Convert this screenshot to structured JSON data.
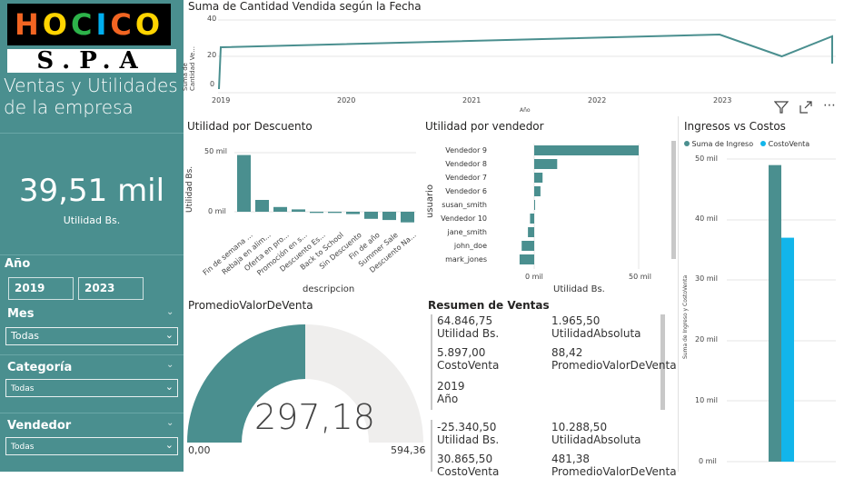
{
  "sidebar": {
    "logo_top": "HOCICO",
    "logo_bottom": "S.P.A",
    "title": "Ventas y Utilidades de la empresa",
    "kpi_value": "39,51 mil",
    "kpi_label": "Utilidad Bs.",
    "year_slicer": {
      "title": "Año",
      "from": "2019",
      "to": "2023"
    },
    "mes": {
      "title": "Mes",
      "value": "Todas"
    },
    "categoria": {
      "title": "Categoría",
      "value": "Todas"
    },
    "vendedor": {
      "title": "Vendedor",
      "value": "Todas"
    }
  },
  "line_chart": {
    "title": "Suma de Cantidad Vendida según la Fecha",
    "ylabel": "Suma de Cantidad Ve...",
    "xlabel": "Año",
    "y_ticks": [
      "40",
      "20",
      "0"
    ],
    "x_ticks": [
      "2019",
      "2020",
      "2021",
      "2022",
      "2023"
    ]
  },
  "toolbar": {
    "filter": "filter-icon",
    "focus": "expand-icon",
    "more": "more-icon"
  },
  "discount_chart": {
    "title": "Utilidad por Descuento",
    "ylabel": "Utilidad Bs.",
    "xlabel": "descripcion",
    "y_ticks": [
      "50 mil",
      "0 mil"
    ],
    "categories": [
      "Fin de semana ...",
      "Rebaja en alim...",
      "Oferta en pro...",
      "Promoción en s...",
      "Descuento Es...",
      "Back to School",
      "Sin Descuento",
      "Fin de año",
      "Summer Sale",
      "Descuento Na..."
    ]
  },
  "seller_chart": {
    "title": "Utilidad por vendedor",
    "ylabel": "usuario",
    "xlabel": "Utilidad Bs.",
    "x_ticks": [
      "0 mil",
      "50 mil"
    ],
    "categories": [
      "Vendedor 9",
      "Vendedor 8",
      "Vendedor 7",
      "Vendedor 6",
      "susan_smith",
      "Vendedor 10",
      "jane_smith",
      "john_doe",
      "mark_jones"
    ]
  },
  "ingresos_chart": {
    "title": "Ingresos vs Costos",
    "legend": [
      "Suma de Ingreso",
      "CostoVenta"
    ],
    "ylabel": "Suma de Ingreso y CostoVenta",
    "y_ticks": [
      "50 mil",
      "40 mil",
      "30 mil",
      "20 mil",
      "10 mil",
      "0 mil"
    ]
  },
  "gauge": {
    "title": "PromedioValorDeVenta",
    "value": "297,18",
    "min": "0,00",
    "max": "594,36"
  },
  "resumen": {
    "title": "Resumen de Ventas",
    "card1": {
      "r1c1_val": "64.846,75",
      "r1c1_lbl": "Utilidad Bs.",
      "r1c2_val": "1.965,50",
      "r1c2_lbl": "UtilidadAbsoluta",
      "r2c1_val": "5.897,00",
      "r2c1_lbl": "CostoVenta",
      "r2c2_val": "88,42",
      "r2c2_lbl": "PromedioValorDeVenta",
      "r3c1_val": "2019",
      "r3c1_lbl": "Año"
    },
    "card2": {
      "r1c1_val": "-25.340,50",
      "r1c1_lbl": "Utilidad Bs.",
      "r1c2_val": "10.288,50",
      "r1c2_lbl": "UtilidadAbsoluta",
      "r2c1_val": "30.865,50",
      "r2c1_lbl": "CostoVenta",
      "r2c2_val": "481,38",
      "r2c2_lbl": "PromedioValorDeVenta"
    }
  },
  "chart_data": [
    {
      "type": "line",
      "title": "Suma de Cantidad Vendida según la Fecha",
      "x": [
        "2019-01",
        "2019-01",
        "2023-01",
        "2023-07",
        "2023-12",
        "2023-12"
      ],
      "values": [
        2,
        25,
        32,
        20,
        31,
        16
      ],
      "ylim": [
        0,
        40
      ],
      "color": "#4a8f8f"
    },
    {
      "type": "bar",
      "title": "Utilidad por Descuento",
      "categories": [
        "Fin de semana ...",
        "Rebaja en alim...",
        "Oferta en pro...",
        "Promoción en s...",
        "Descuento Es...",
        "Back to School",
        "Sin Descuento",
        "Fin de año",
        "Summer Sale",
        "Descuento Na..."
      ],
      "values": [
        48,
        10,
        4,
        2,
        -1,
        -1,
        -2,
        -6,
        -7,
        -9
      ],
      "ylim": [
        -10,
        55
      ],
      "color": "#4a8f8f"
    },
    {
      "type": "bar",
      "orientation": "horizontal",
      "title": "Utilidad por vendedor",
      "categories": [
        "Vendedor 9",
        "Vendedor 8",
        "Vendedor 7",
        "Vendedor 6",
        "susan_smith",
        "Vendedor 10",
        "jane_smith",
        "john_doe",
        "mark_jones"
      ],
      "values": [
        50,
        11,
        4,
        3,
        0,
        -2,
        -3,
        -6,
        -7
      ],
      "xlim": [
        -10,
        55
      ],
      "color": "#4a8f8f"
    },
    {
      "type": "bar",
      "title": "Ingresos vs Costos",
      "series": [
        {
          "name": "Suma de Ingreso",
          "values": [
            49
          ]
        },
        {
          "name": "CostoVenta",
          "values": [
            37
          ]
        }
      ],
      "ylim": [
        0,
        50
      ],
      "colors": [
        "#4a8f8f",
        "#12b5ea"
      ]
    }
  ]
}
